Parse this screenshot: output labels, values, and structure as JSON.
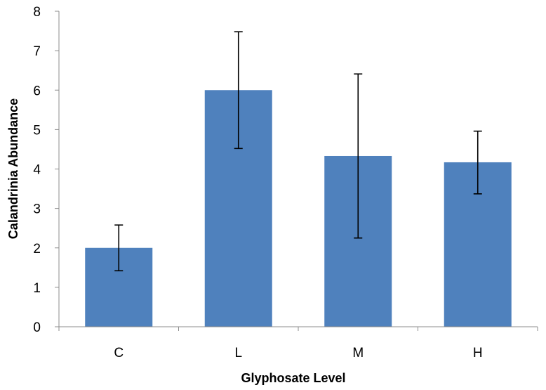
{
  "chart_data": {
    "type": "bar",
    "categories": [
      "C",
      "L",
      "M",
      "H"
    ],
    "values": [
      2.0,
      6.0,
      4.33,
      4.17
    ],
    "error_low": [
      1.42,
      4.52,
      2.25,
      3.37
    ],
    "error_high": [
      2.58,
      7.48,
      6.41,
      4.96
    ],
    "title": "",
    "xlabel": "Glyphosate Level",
    "ylabel": "Calandrinia Abundance",
    "ylim": [
      0,
      8
    ],
    "yticks": [
      0,
      1,
      2,
      3,
      4,
      5,
      6,
      7,
      8
    ],
    "bar_color": "#4f81bd",
    "grid": false,
    "legend": "none"
  }
}
